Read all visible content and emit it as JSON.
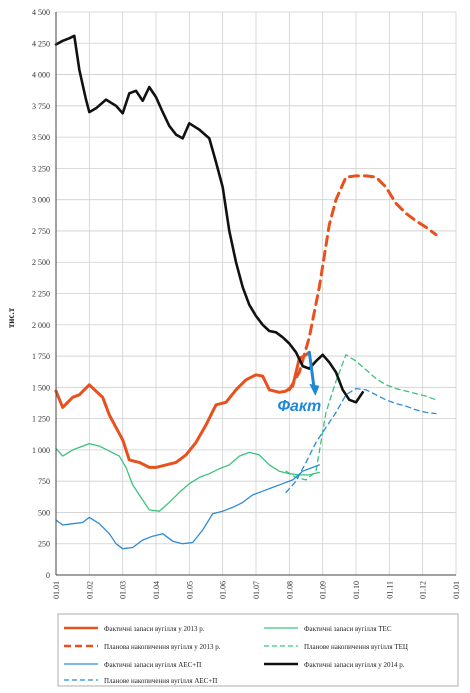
{
  "chart_data": {
    "type": "line",
    "ylabel": "тис.т",
    "xlabel": "",
    "ylim": [
      0,
      4500
    ],
    "yticks": [
      0,
      250,
      500,
      750,
      1000,
      1250,
      1500,
      1750,
      2000,
      2250,
      2500,
      2750,
      3000,
      3250,
      3500,
      3750,
      4000,
      4250,
      4500
    ],
    "ytick_labels": [
      "0",
      "250",
      "500",
      "750",
      "1 000",
      "1 250",
      "1 500",
      "1 750",
      "2 000",
      "2 250",
      "2 500",
      "2 750",
      "3 000",
      "3 250",
      "3 500",
      "3 750",
      "4 000",
      "4 250",
      "4 500"
    ],
    "xlim": [
      1,
      13
    ],
    "xticks": [
      1,
      2,
      3,
      4,
      5,
      6,
      7,
      8,
      9,
      10,
      11,
      12,
      13
    ],
    "xtick_labels": [
      "01.01",
      "01.02",
      "01.03",
      "01.04",
      "01.05",
      "01.06",
      "01.07",
      "01.08",
      "01.09",
      "01.10",
      "01.11",
      "01.12",
      "01.01"
    ],
    "grid": true,
    "legend_position": "bottom",
    "series": [
      {
        "name": "Фактичні запаси вугілля у 2013 р.",
        "color": "#e8501e",
        "dash": "solid",
        "width": 3,
        "points": [
          [
            1.0,
            1470
          ],
          [
            1.2,
            1340
          ],
          [
            1.5,
            1420
          ],
          [
            1.7,
            1440
          ],
          [
            2.0,
            1520
          ],
          [
            2.2,
            1470
          ],
          [
            2.4,
            1420
          ],
          [
            2.6,
            1280
          ],
          [
            2.8,
            1180
          ],
          [
            3.0,
            1080
          ],
          [
            3.2,
            920
          ],
          [
            3.5,
            900
          ],
          [
            3.8,
            860
          ],
          [
            4.0,
            860
          ],
          [
            4.3,
            880
          ],
          [
            4.6,
            900
          ],
          [
            4.9,
            960
          ],
          [
            5.2,
            1060
          ],
          [
            5.5,
            1200
          ],
          [
            5.8,
            1360
          ],
          [
            6.1,
            1380
          ],
          [
            6.4,
            1480
          ],
          [
            6.7,
            1560
          ],
          [
            7.0,
            1600
          ],
          [
            7.2,
            1590
          ],
          [
            7.4,
            1480
          ],
          [
            7.7,
            1460
          ],
          [
            7.9,
            1470
          ],
          [
            8.1,
            1510
          ],
          [
            8.3,
            1730
          ],
          [
            8.5,
            1760
          ],
          [
            8.6,
            1780
          ]
        ]
      },
      {
        "name": "Планова накопичення вугілля у 2013 р.",
        "color": "#e8501e",
        "dash": "dashed",
        "width": 3,
        "points": [
          [
            8.0,
            1480
          ],
          [
            8.3,
            1620
          ],
          [
            8.6,
            1900
          ],
          [
            8.9,
            2300
          ],
          [
            9.2,
            2800
          ],
          [
            9.4,
            3000
          ],
          [
            9.7,
            3180
          ],
          [
            10.0,
            3190
          ],
          [
            10.3,
            3190
          ],
          [
            10.6,
            3180
          ],
          [
            10.9,
            3100
          ],
          [
            11.2,
            2970
          ],
          [
            11.5,
            2890
          ],
          [
            11.8,
            2830
          ],
          [
            12.1,
            2780
          ],
          [
            12.4,
            2720
          ]
        ]
      },
      {
        "name": "Фактичні запаси вугілля ТЕС",
        "color": "#3cc37d",
        "dash": "solid",
        "width": 1.3,
        "points": [
          [
            1.0,
            1010
          ],
          [
            1.2,
            950
          ],
          [
            1.5,
            1000
          ],
          [
            1.8,
            1030
          ],
          [
            2.0,
            1050
          ],
          [
            2.3,
            1030
          ],
          [
            2.6,
            990
          ],
          [
            2.9,
            950
          ],
          [
            3.1,
            860
          ],
          [
            3.3,
            720
          ],
          [
            3.5,
            640
          ],
          [
            3.8,
            520
          ],
          [
            4.1,
            510
          ],
          [
            4.4,
            580
          ],
          [
            4.7,
            660
          ],
          [
            5.0,
            730
          ],
          [
            5.3,
            780
          ],
          [
            5.6,
            810
          ],
          [
            5.9,
            850
          ],
          [
            6.2,
            880
          ],
          [
            6.5,
            950
          ],
          [
            6.8,
            980
          ],
          [
            7.1,
            960
          ],
          [
            7.4,
            880
          ],
          [
            7.7,
            830
          ],
          [
            8.0,
            810
          ],
          [
            8.3,
            800
          ],
          [
            8.6,
            800
          ],
          [
            8.9,
            820
          ]
        ]
      },
      {
        "name": "Планове накопичення вугілля ТЕЦ",
        "color": "#3cc37d",
        "dash": "dashed",
        "width": 1.3,
        "points": [
          [
            7.9,
            830
          ],
          [
            8.2,
            780
          ],
          [
            8.5,
            760
          ],
          [
            8.8,
            830
          ],
          [
            9.1,
            1300
          ],
          [
            9.4,
            1550
          ],
          [
            9.7,
            1760
          ],
          [
            10.0,
            1710
          ],
          [
            10.3,
            1640
          ],
          [
            10.6,
            1570
          ],
          [
            10.9,
            1520
          ],
          [
            11.2,
            1490
          ],
          [
            11.5,
            1470
          ],
          [
            11.8,
            1450
          ],
          [
            12.1,
            1430
          ],
          [
            12.4,
            1400
          ]
        ]
      },
      {
        "name": "Фактичні запаси вугілля АЕС+П",
        "color": "#2e8bd4",
        "dash": "solid",
        "width": 1.3,
        "points": [
          [
            1.0,
            440
          ],
          [
            1.2,
            400
          ],
          [
            1.5,
            410
          ],
          [
            1.8,
            420
          ],
          [
            2.0,
            460
          ],
          [
            2.3,
            410
          ],
          [
            2.6,
            330
          ],
          [
            2.8,
            250
          ],
          [
            3.0,
            210
          ],
          [
            3.3,
            220
          ],
          [
            3.6,
            280
          ],
          [
            3.9,
            310
          ],
          [
            4.2,
            330
          ],
          [
            4.5,
            270
          ],
          [
            4.8,
            250
          ],
          [
            5.1,
            260
          ],
          [
            5.4,
            360
          ],
          [
            5.7,
            490
          ],
          [
            6.0,
            510
          ],
          [
            6.3,
            540
          ],
          [
            6.6,
            580
          ],
          [
            6.9,
            640
          ],
          [
            7.2,
            670
          ],
          [
            7.5,
            700
          ],
          [
            7.8,
            730
          ],
          [
            8.1,
            760
          ],
          [
            8.4,
            830
          ],
          [
            8.7,
            860
          ],
          [
            8.9,
            880
          ]
        ]
      },
      {
        "name": "Фактичні запаси вугілля у 2014 р.",
        "color": "#111111",
        "dash": "solid",
        "width": 2.6,
        "points": [
          [
            1.0,
            4240
          ],
          [
            1.2,
            4270
          ],
          [
            1.4,
            4290
          ],
          [
            1.55,
            4310
          ],
          [
            1.7,
            4040
          ],
          [
            1.9,
            3800
          ],
          [
            2.0,
            3700
          ],
          [
            2.2,
            3730
          ],
          [
            2.5,
            3800
          ],
          [
            2.8,
            3750
          ],
          [
            3.0,
            3690
          ],
          [
            3.2,
            3850
          ],
          [
            3.4,
            3870
          ],
          [
            3.6,
            3790
          ],
          [
            3.8,
            3900
          ],
          [
            4.0,
            3820
          ],
          [
            4.2,
            3700
          ],
          [
            4.4,
            3590
          ],
          [
            4.6,
            3520
          ],
          [
            4.8,
            3490
          ],
          [
            5.0,
            3610
          ],
          [
            5.3,
            3560
          ],
          [
            5.6,
            3490
          ],
          [
            5.8,
            3300
          ],
          [
            6.0,
            3100
          ],
          [
            6.2,
            2750
          ],
          [
            6.4,
            2500
          ],
          [
            6.6,
            2300
          ],
          [
            6.8,
            2160
          ],
          [
            7.0,
            2070
          ],
          [
            7.2,
            2000
          ],
          [
            7.4,
            1950
          ],
          [
            7.6,
            1940
          ],
          [
            7.8,
            1900
          ],
          [
            8.0,
            1850
          ],
          [
            8.2,
            1780
          ],
          [
            8.4,
            1670
          ],
          [
            8.6,
            1650
          ],
          [
            8.8,
            1710
          ],
          [
            9.0,
            1760
          ],
          [
            9.2,
            1700
          ],
          [
            9.4,
            1620
          ],
          [
            9.6,
            1480
          ],
          [
            9.8,
            1400
          ],
          [
            10.0,
            1380
          ],
          [
            10.2,
            1460
          ]
        ]
      },
      {
        "name": "Планове накопичення вугілля АЕС+П",
        "color": "#2e8bd4",
        "dash": "dashed",
        "width": 1.3,
        "points": [
          [
            7.9,
            660
          ],
          [
            8.2,
            750
          ],
          [
            8.5,
            900
          ],
          [
            8.8,
            1060
          ],
          [
            9.1,
            1180
          ],
          [
            9.4,
            1300
          ],
          [
            9.7,
            1440
          ],
          [
            10.0,
            1490
          ],
          [
            10.3,
            1480
          ],
          [
            10.6,
            1440
          ],
          [
            10.9,
            1400
          ],
          [
            11.2,
            1370
          ],
          [
            11.5,
            1350
          ],
          [
            11.8,
            1320
          ],
          [
            12.1,
            1300
          ],
          [
            12.4,
            1290
          ]
        ]
      }
    ],
    "annotations": [
      {
        "text": "Факт",
        "x": 8.3,
        "y": 1310,
        "color": "#1f88d6"
      }
    ],
    "annotation_arrow": {
      "from": [
        8.6,
        1780
      ],
      "to": [
        8.75,
        1480
      ],
      "color": "#1f88d6"
    }
  }
}
